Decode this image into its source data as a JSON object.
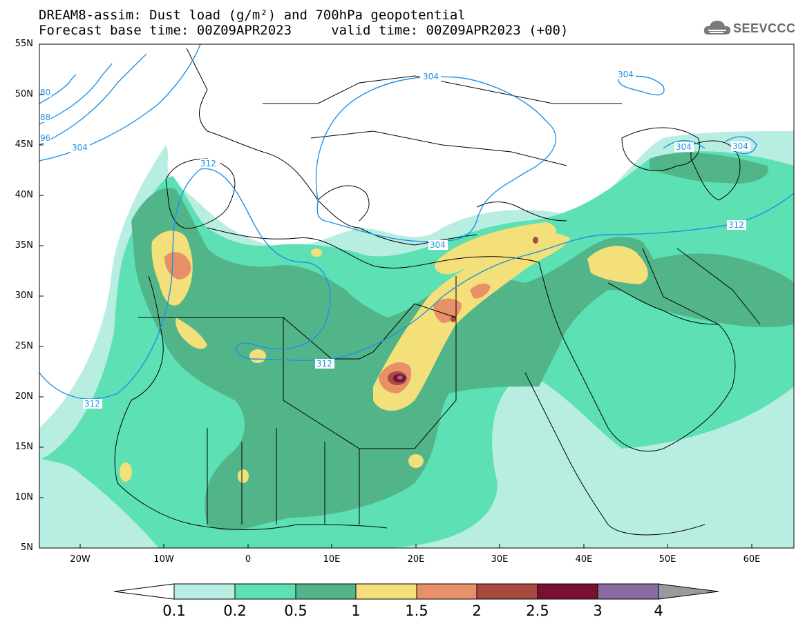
{
  "header": {
    "title_line1": "DREAM8-assim: Dust load (g/m²) and 700hPa geopotential",
    "title_line2": "Forecast base time: 00Z09APR2023     valid time: 00Z09APR2023 (+00)"
  },
  "logo": {
    "text": "SEEVCCC",
    "icon": "cloud-icon"
  },
  "map": {
    "lat_labels": [
      "55N",
      "50N",
      "45N",
      "40N",
      "35N",
      "30N",
      "25N",
      "20N",
      "15N",
      "10N",
      "5N"
    ],
    "lon_labels": [
      "20W",
      "10W",
      "0",
      "10E",
      "20E",
      "30E",
      "40E",
      "50E",
      "60E"
    ],
    "contour_labels": [
      "304",
      "304",
      "304",
      "304",
      "304",
      "304",
      "312",
      "312",
      "312",
      "312",
      "80",
      "88",
      "96"
    ]
  },
  "colorbar": {
    "labels": [
      "0.1",
      "0.2",
      "0.5",
      "1",
      "1.5",
      "2",
      "2.5",
      "3",
      "4"
    ],
    "colors": [
      "#b8eee2",
      "#5ce0b4",
      "#52b58a",
      "#f4e07a",
      "#e89068",
      "#a84a40",
      "#7a1030",
      "#8a6aa0",
      "#9a9a9a"
    ]
  }
}
